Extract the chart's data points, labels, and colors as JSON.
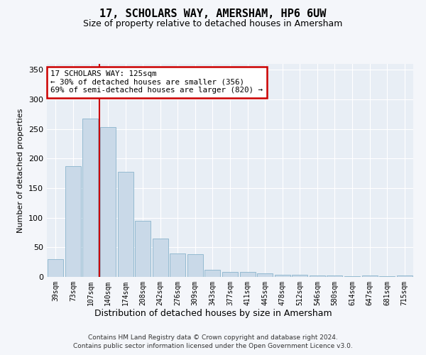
{
  "title": "17, SCHOLARS WAY, AMERSHAM, HP6 6UW",
  "subtitle": "Size of property relative to detached houses in Amersham",
  "xlabel": "Distribution of detached houses by size in Amersham",
  "ylabel": "Number of detached properties",
  "footer_line1": "Contains HM Land Registry data © Crown copyright and database right 2024.",
  "footer_line2": "Contains public sector information licensed under the Open Government Licence v3.0.",
  "annotation_line1": "17 SCHOLARS WAY: 125sqm",
  "annotation_line2": "← 30% of detached houses are smaller (356)",
  "annotation_line3": "69% of semi-detached houses are larger (820) →",
  "bar_categories": [
    "39sqm",
    "73sqm",
    "107sqm",
    "140sqm",
    "174sqm",
    "208sqm",
    "242sqm",
    "276sqm",
    "309sqm",
    "343sqm",
    "377sqm",
    "411sqm",
    "445sqm",
    "478sqm",
    "512sqm",
    "546sqm",
    "580sqm",
    "614sqm",
    "647sqm",
    "681sqm",
    "715sqm"
  ],
  "bar_values": [
    30,
    187,
    268,
    253,
    178,
    95,
    65,
    40,
    38,
    12,
    9,
    8,
    6,
    4,
    4,
    3,
    3,
    1,
    3,
    1,
    2
  ],
  "bar_color": "#c9d9e8",
  "bar_edge_color": "#8ab4cc",
  "vline_x_index": 2.5,
  "vline_color": "#cc0000",
  "annotation_box_color": "#cc0000",
  "background_color": "#e8eef5",
  "fig_background_color": "#f4f6fa",
  "grid_color": "#ffffff",
  "ylim": [
    0,
    360
  ],
  "yticks": [
    0,
    50,
    100,
    150,
    200,
    250,
    300,
    350
  ]
}
